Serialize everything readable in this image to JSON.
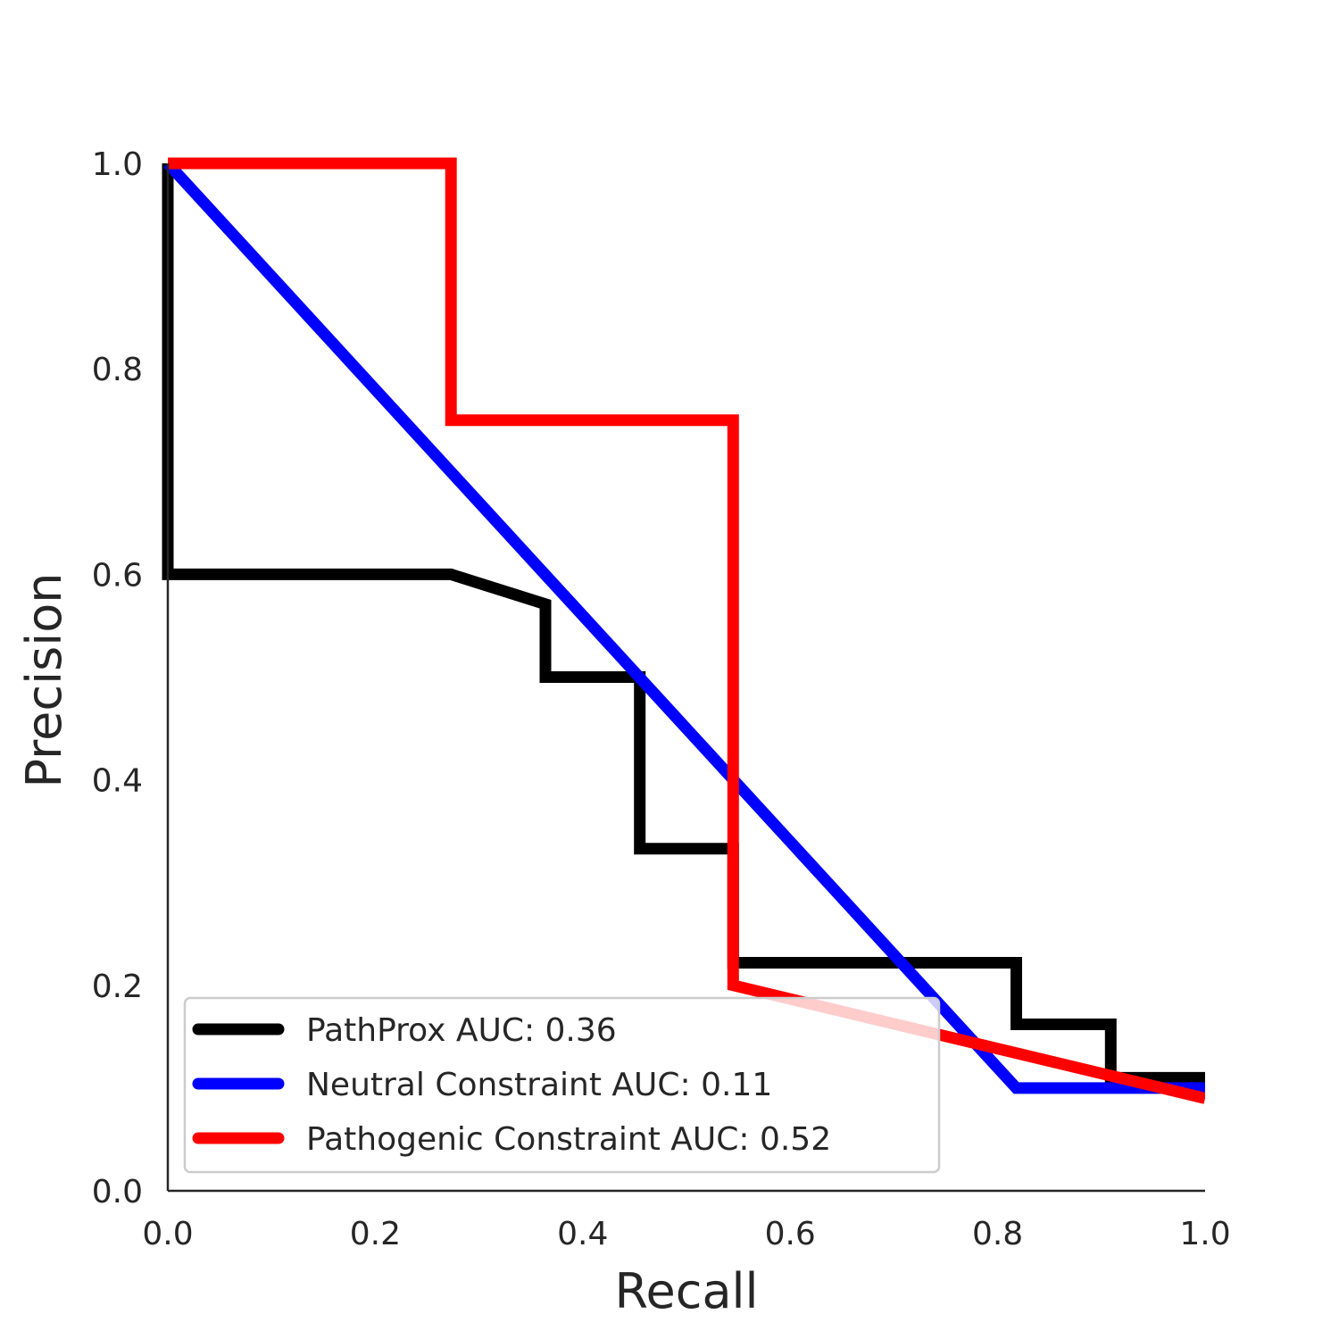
{
  "chart_data": {
    "type": "line",
    "xlabel": "Recall",
    "ylabel": "Precision",
    "xlim": [
      0,
      1
    ],
    "ylim": [
      0,
      1
    ],
    "xticks": [
      "0.0",
      "0.2",
      "0.4",
      "0.6",
      "0.8",
      "1.0"
    ],
    "yticks": [
      "0.0",
      "0.2",
      "0.4",
      "0.6",
      "0.8",
      "1.0"
    ],
    "grid": false,
    "legend_position": "lower-left",
    "series": [
      {
        "name": "PathProx AUC:  0.36",
        "color": "#000000",
        "x": [
          0.0,
          0.0,
          0.273,
          0.364,
          0.364,
          0.455,
          0.455,
          0.545,
          0.545,
          0.818,
          0.818,
          0.909,
          0.909,
          1.0
        ],
        "y": [
          1.0,
          0.6,
          0.6,
          0.571,
          0.5,
          0.5,
          0.333,
          0.333,
          0.222,
          0.222,
          0.162,
          0.162,
          0.11,
          0.11
        ]
      },
      {
        "name": "Neutral Constraint AUC:  0.11",
        "color": "#0000ff",
        "x": [
          0.0,
          0.818,
          0.818,
          1.0
        ],
        "y": [
          1.0,
          0.1,
          0.1,
          0.1
        ]
      },
      {
        "name": "Pathogenic Constraint AUC:  0.52",
        "color": "#ff0000",
        "x": [
          0.0,
          0.273,
          0.273,
          0.545,
          0.545,
          1.0
        ],
        "y": [
          1.0,
          1.0,
          0.75,
          0.75,
          0.2,
          0.09
        ]
      }
    ]
  }
}
